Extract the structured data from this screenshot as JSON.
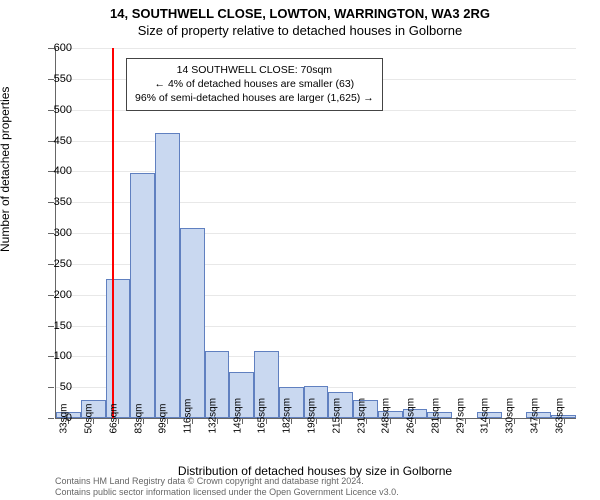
{
  "title_line1": "14, SOUTHWELL CLOSE, LOWTON, WARRINGTON, WA3 2RG",
  "title_line2": "Size of property relative to detached houses in Golborne",
  "y_axis_title": "Number of detached properties",
  "x_axis_title": "Distribution of detached houses by size in Golborne",
  "footer_line1": "Contains HM Land Registry data © Crown copyright and database right 2024.",
  "footer_line2": "Contains public sector information licensed under the Open Government Licence v3.0.",
  "annotation": {
    "line1": "14 SOUTHWELL CLOSE: 70sqm",
    "line2": "← 4% of detached houses are smaller (63)",
    "line3": "96% of semi-detached houses are larger (1,625) →"
  },
  "chart": {
    "type": "histogram",
    "ylim": [
      0,
      600
    ],
    "ytick_step": 50,
    "bar_fill": "#c9d8f0",
    "bar_border": "#6080c0",
    "marker_color": "#ff0000",
    "marker_x": 70,
    "background": "#ffffff",
    "grid_color": "#e8e8e8",
    "categories": [
      "33sqm",
      "50sqm",
      "66sqm",
      "83sqm",
      "99sqm",
      "116sqm",
      "132sqm",
      "149sqm",
      "165sqm",
      "182sqm",
      "198sqm",
      "215sqm",
      "231sqm",
      "248sqm",
      "264sqm",
      "281sqm",
      "297sqm",
      "314sqm",
      "330sqm",
      "347sqm",
      "363sqm"
    ],
    "x_start": 33,
    "x_step": 16.5,
    "values": [
      10,
      30,
      225,
      398,
      462,
      308,
      108,
      75,
      108,
      50,
      52,
      42,
      30,
      12,
      15,
      10,
      0,
      10,
      0,
      10,
      5
    ]
  }
}
